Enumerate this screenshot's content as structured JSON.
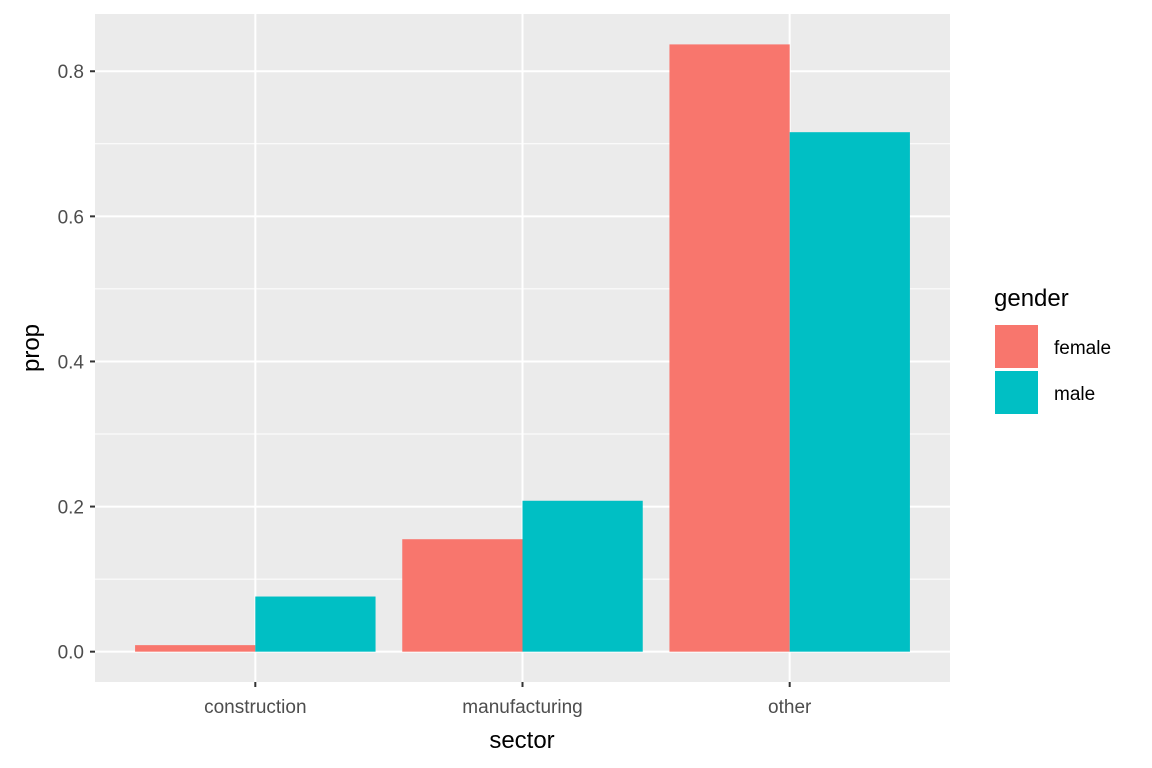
{
  "chart_data": {
    "type": "bar",
    "categories": [
      "construction",
      "manufacturing",
      "other"
    ],
    "series": [
      {
        "name": "female",
        "color": "#F8766D",
        "values": [
          0.009,
          0.155,
          0.837
        ]
      },
      {
        "name": "male",
        "color": "#00BFC4",
        "values": [
          0.076,
          0.208,
          0.716
        ]
      }
    ],
    "xlabel": "sector",
    "ylabel": "prop",
    "ylim": [
      -0.0418,
      0.8789
    ],
    "yticks": [
      0.0,
      0.2,
      0.4,
      0.6,
      0.8
    ],
    "ytick_labels": [
      "0.0",
      "0.2",
      "0.4",
      "0.6",
      "0.8"
    ],
    "legend": {
      "title": "gender",
      "position": "right"
    },
    "grid": true,
    "panel_background": "#EBEBEB",
    "grid_color": "#FFFFFF"
  }
}
